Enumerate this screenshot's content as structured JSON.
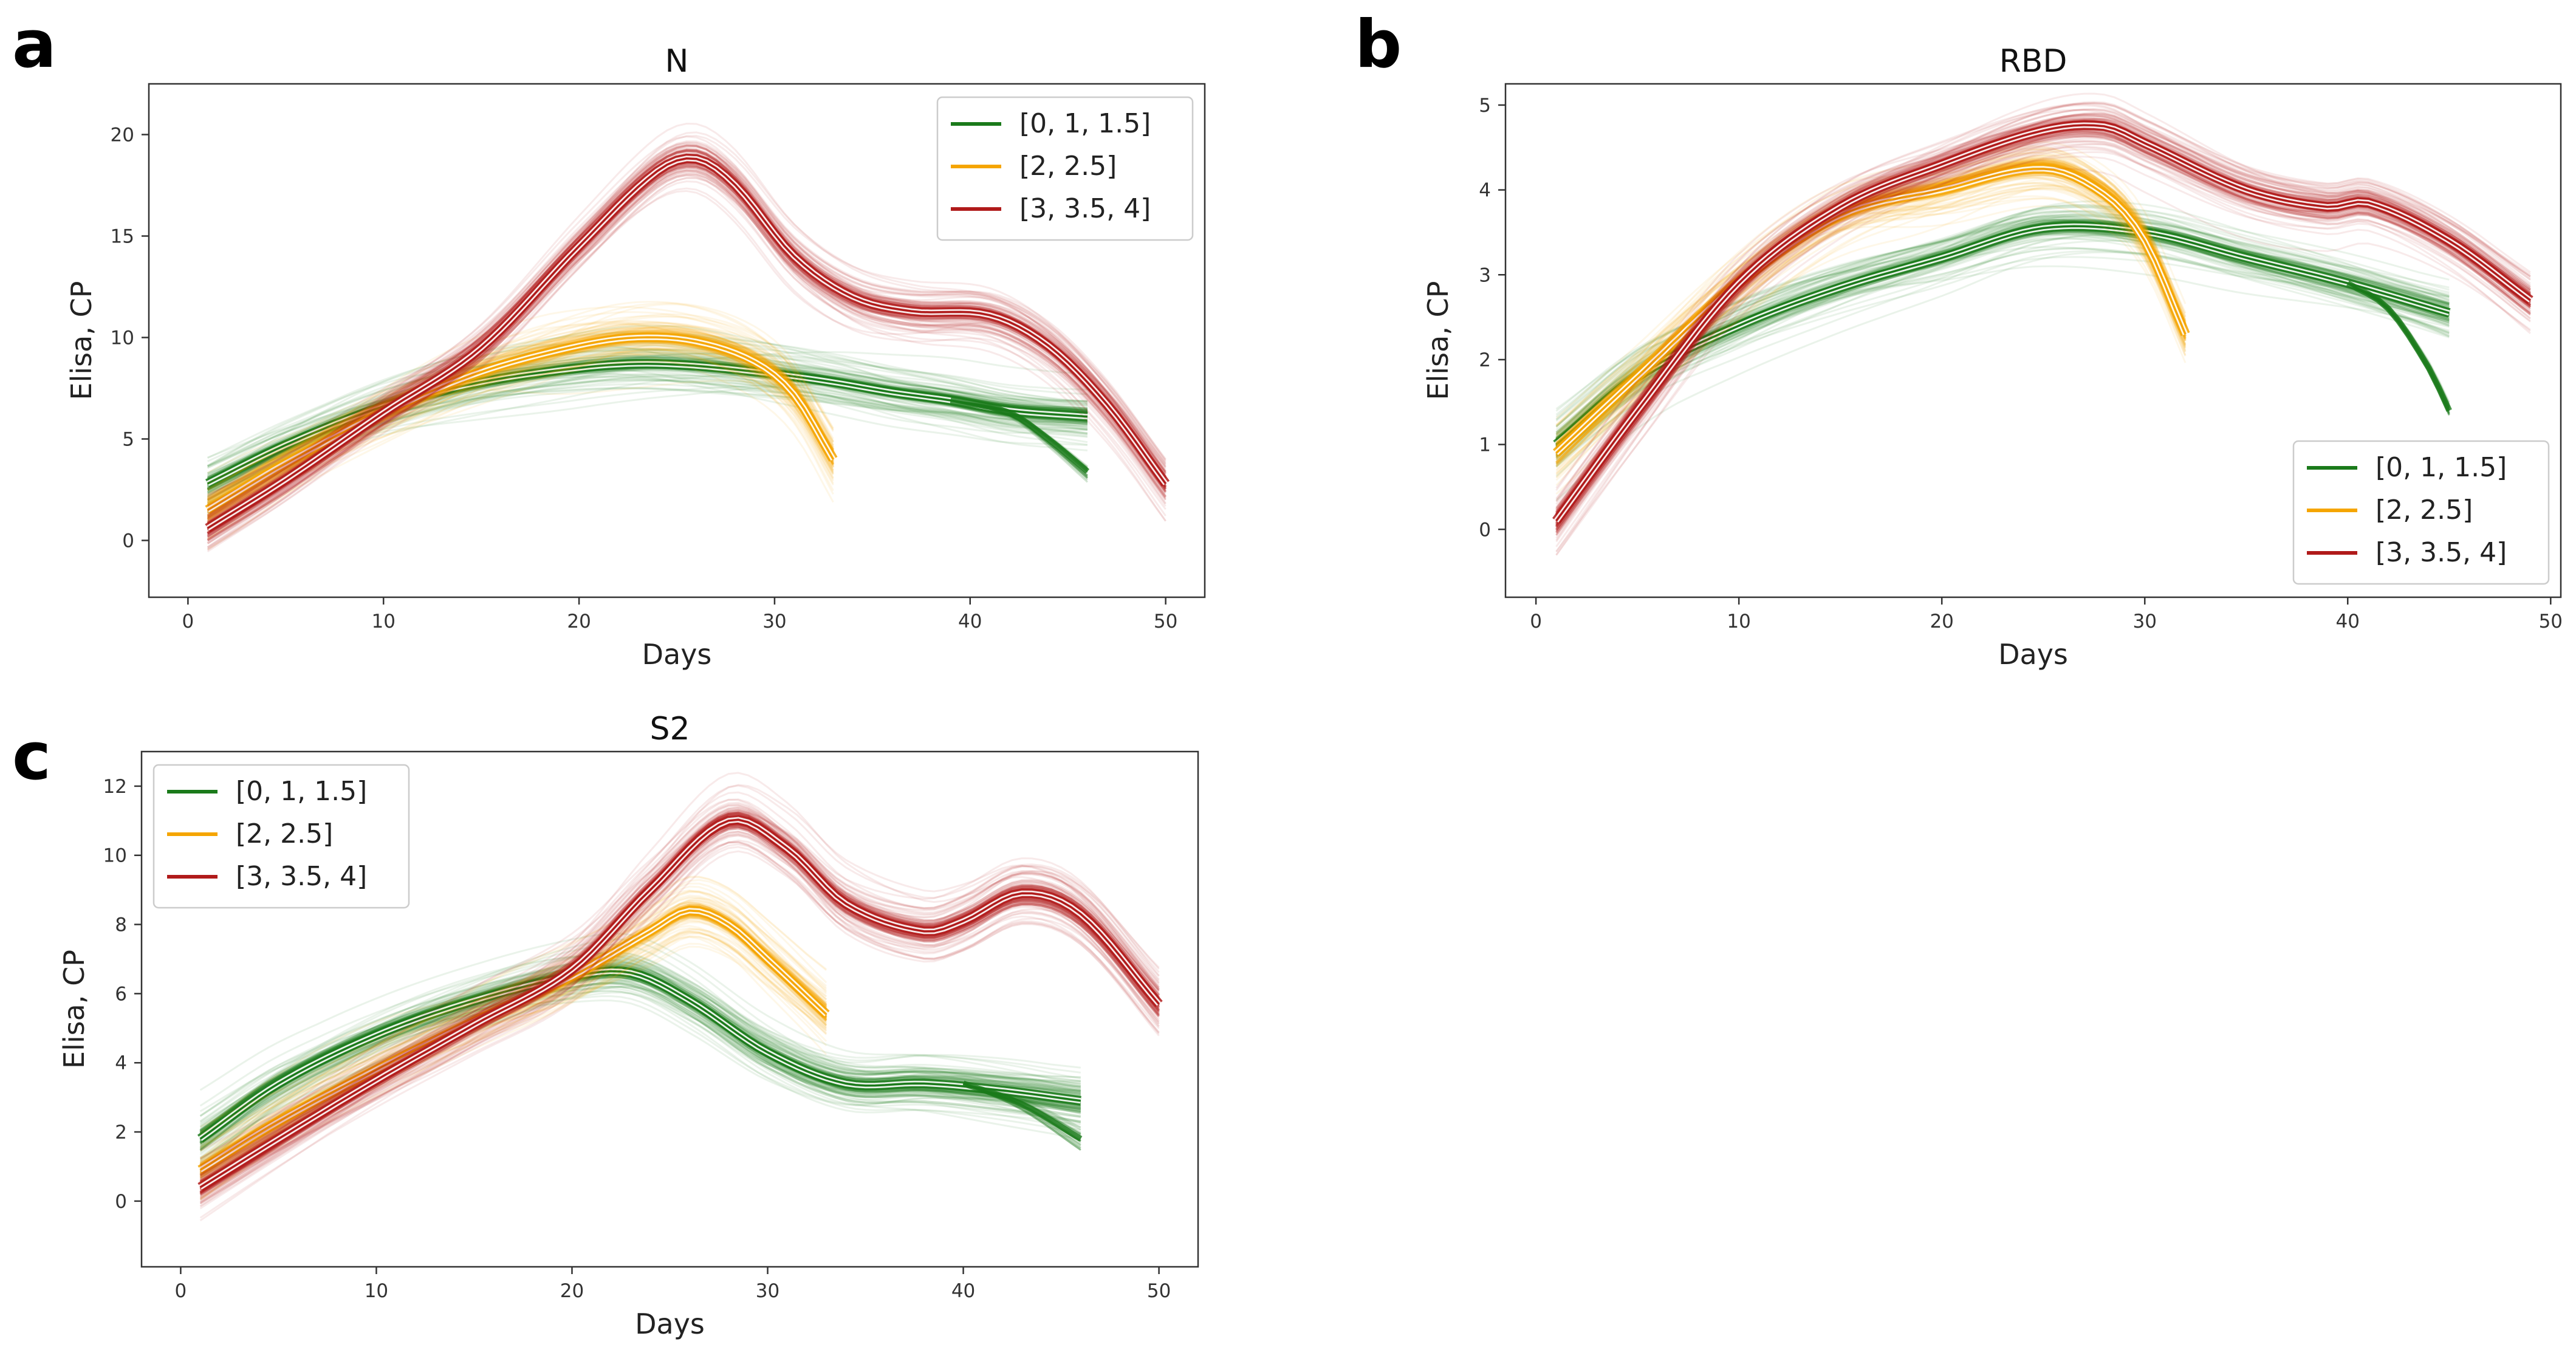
{
  "panel_letters": [
    "a",
    "b",
    "c"
  ],
  "colors": {
    "green": "#1a7a1a",
    "orange": "#f5a500",
    "red": "#b01a1a"
  },
  "chart_data": [
    {
      "type": "line",
      "title": "N",
      "xlabel": "Days",
      "ylabel": "Elisa, CP",
      "xlim": [
        -2,
        52
      ],
      "ylim": [
        -2.8,
        22.5
      ],
      "xticks": [
        0,
        10,
        20,
        30,
        40,
        50
      ],
      "yticks": [
        0,
        5,
        10,
        15,
        20
      ],
      "legend_position": "top-right",
      "series": [
        {
          "name": "[0, 1, 1.5]",
          "color": "#1a7a1a",
          "x": [
            1,
            5,
            10,
            15,
            20,
            23,
            26,
            30,
            33,
            36,
            39,
            42,
            46
          ],
          "y": [
            2.8,
            4.7,
            6.6,
            7.8,
            8.5,
            8.7,
            8.6,
            8.2,
            7.8,
            7.3,
            6.9,
            6.4,
            6.1
          ],
          "branch": {
            "x": [
              39,
              42,
              44,
              46
            ],
            "y": [
              6.9,
              6.3,
              5.0,
              3.4
            ]
          }
        },
        {
          "name": "[2, 2.5]",
          "color": "#f5a500",
          "x": [
            1,
            5,
            10,
            15,
            20,
            23,
            26,
            29,
            31,
            33
          ],
          "y": [
            1.5,
            3.8,
            6.3,
            8.3,
            9.6,
            10.0,
            9.8,
            8.8,
            7.2,
            4.0
          ]
        },
        {
          "name": "[3, 3.5, 4]",
          "color": "#b01a1a",
          "x": [
            1,
            5,
            10,
            15,
            20,
            24,
            26,
            28,
            31,
            34,
            37,
            41,
            44,
            47,
            50
          ],
          "y": [
            0.6,
            3.0,
            6.3,
            9.5,
            14.5,
            18.2,
            18.8,
            17.5,
            14.0,
            12.0,
            11.3,
            11.1,
            9.6,
            6.7,
            2.8
          ]
        }
      ]
    },
    {
      "type": "line",
      "title": "RBD",
      "xlabel": "Days",
      "ylabel": "Elisa, CP",
      "xlim": [
        -1.5,
        50.5
      ],
      "ylim": [
        -0.8,
        5.25
      ],
      "xticks": [
        0,
        10,
        20,
        30,
        40,
        50
      ],
      "yticks": [
        0,
        1,
        2,
        3,
        4,
        5
      ],
      "legend_position": "bottom-right",
      "series": [
        {
          "name": "[0, 1, 1.5]",
          "color": "#1a7a1a",
          "x": [
            1,
            5,
            10,
            15,
            20,
            25,
            30,
            35,
            40,
            45
          ],
          "y": [
            1.0,
            1.8,
            2.4,
            2.85,
            3.2,
            3.55,
            3.5,
            3.2,
            2.9,
            2.55
          ],
          "branch": {
            "x": [
              40,
              42,
              44,
              45
            ],
            "y": [
              2.9,
              2.6,
              1.9,
              1.4
            ]
          }
        },
        {
          "name": "[2, 2.5]",
          "color": "#f5a500",
          "x": [
            1,
            5,
            10,
            15,
            20,
            25,
            28,
            30,
            32
          ],
          "y": [
            0.9,
            1.8,
            2.9,
            3.7,
            4.0,
            4.25,
            3.95,
            3.4,
            2.3
          ]
        },
        {
          "name": "[3, 3.5, 4]",
          "color": "#b01a1a",
          "x": [
            1,
            5,
            10,
            15,
            20,
            25,
            28,
            30,
            35,
            39,
            41,
            45,
            49
          ],
          "y": [
            0.1,
            1.4,
            2.9,
            3.8,
            4.3,
            4.7,
            4.75,
            4.55,
            4.0,
            3.8,
            3.85,
            3.4,
            2.7
          ]
        }
      ]
    },
    {
      "type": "line",
      "title": "S2",
      "xlabel": "Days",
      "ylabel": "Elisa, CP",
      "xlim": [
        -2,
        52
      ],
      "ylim": [
        -1.9,
        13.0
      ],
      "xticks": [
        0,
        10,
        20,
        30,
        40,
        50
      ],
      "yticks": [
        0,
        2,
        4,
        6,
        8,
        10,
        12
      ],
      "legend_position": "top-left",
      "series": [
        {
          "name": "[0, 1, 1.5]",
          "color": "#1a7a1a",
          "x": [
            1,
            5,
            10,
            15,
            20,
            23,
            26,
            30,
            34,
            38,
            42,
            46
          ],
          "y": [
            1.8,
            3.4,
            4.8,
            5.8,
            6.5,
            6.6,
            5.8,
            4.3,
            3.4,
            3.4,
            3.2,
            2.9
          ],
          "branch": {
            "x": [
              40,
              43,
              46
            ],
            "y": [
              3.4,
              2.8,
              1.8
            ]
          }
        },
        {
          "name": "[2, 2.5]",
          "color": "#f5a500",
          "x": [
            1,
            5,
            10,
            15,
            20,
            24,
            26,
            28,
            30,
            33
          ],
          "y": [
            0.9,
            2.3,
            3.8,
            5.2,
            6.5,
            7.8,
            8.4,
            8.0,
            7.0,
            5.4
          ]
        },
        {
          "name": "[3, 3.5, 4]",
          "color": "#b01a1a",
          "x": [
            1,
            5,
            10,
            15,
            20,
            24,
            28,
            31,
            34,
            38,
            40,
            43,
            46,
            50
          ],
          "y": [
            0.4,
            1.8,
            3.5,
            5.1,
            6.7,
            9.0,
            11.0,
            10.2,
            8.6,
            7.8,
            8.1,
            8.9,
            8.3,
            5.7
          ]
        }
      ]
    }
  ]
}
